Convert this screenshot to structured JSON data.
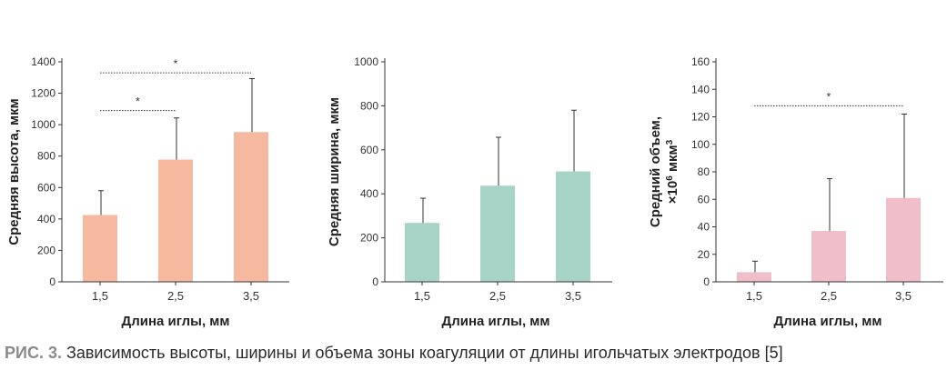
{
  "chart_data": [
    {
      "type": "bar",
      "categories": [
        "1,5",
        "2,5",
        "3,5"
      ],
      "values": [
        425,
        778,
        953
      ],
      "errors": [
        155,
        265,
        340
      ],
      "ylim": [
        0,
        1400
      ],
      "yticks": [
        0,
        200,
        400,
        600,
        800,
        1000,
        1200,
        1400
      ],
      "ylabel": "Средняя высота, мкм",
      "xlabel": "Длина иглы, мм",
      "color": "#F7B8A0",
      "significance": [
        {
          "from": 0,
          "to": 1,
          "y": 1090,
          "label": "*"
        },
        {
          "from": 0,
          "to": 2,
          "y": 1330,
          "label": "*"
        }
      ]
    },
    {
      "type": "bar",
      "categories": [
        "1,5",
        "2,5",
        "3,5"
      ],
      "values": [
        268,
        437,
        502
      ],
      "errors": [
        112,
        220,
        278
      ],
      "ylim": [
        0,
        1000
      ],
      "yticks": [
        0,
        200,
        400,
        600,
        800,
        1000
      ],
      "ylabel": "Средняя ширина, мкм",
      "xlabel": "Длина иглы, мм",
      "color": "#A8D4C8",
      "significance": []
    },
    {
      "type": "bar",
      "categories": [
        "1,5",
        "2,5",
        "3,5"
      ],
      "values": [
        7,
        37,
        61
      ],
      "errors": [
        8,
        38,
        61
      ],
      "ylim": [
        0,
        160
      ],
      "yticks": [
        0,
        20,
        40,
        60,
        80,
        100,
        120,
        140,
        160
      ],
      "ylabel": "Средний объем,",
      "ylabel2_prefix": "×10",
      "ylabel2_sup1": "6",
      "ylabel2_mid": " мкм",
      "ylabel2_sup2": "3",
      "xlabel": "Длина иглы, мм",
      "color": "#F0BEC8",
      "significance": [
        {
          "from": 0,
          "to": 2,
          "y": 128,
          "label": "*"
        }
      ]
    }
  ],
  "caption": {
    "label": "РИС. 3.",
    "text": " Зависимость высоты, ширины и объема зоны коагуляции от длины игольчатых электродов [5]"
  }
}
